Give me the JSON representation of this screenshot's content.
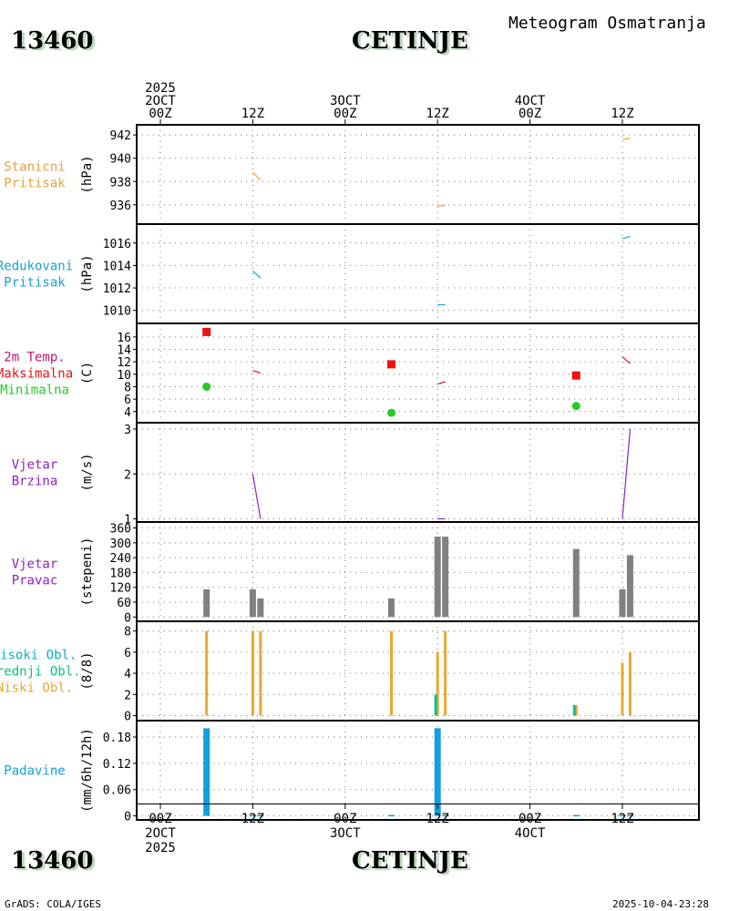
{
  "header": {
    "station_id": "13460",
    "station_name": "CETINJE",
    "chart_title": "Meteogram Osmatranja",
    "footer_left": "GrADS: COLA/IGES",
    "footer_right": "2025-10-04-23:28"
  },
  "colors": {
    "pressure_station": "#e8a040",
    "pressure_reduced": "#1aa0d0",
    "temp_label": "#c0186c",
    "temp_max": "#ee1111",
    "temp_min": "#22cc22",
    "wind": "#9020c0",
    "dir_bar": "#808080",
    "cloud_high": "#10b0c0",
    "cloud_mid": "#10c080",
    "cloud_low": "#e8a830",
    "precip": "#10a0e0"
  },
  "time_axis": {
    "hours": [
      0,
      12,
      24,
      36,
      48,
      60
    ],
    "top_labels": [
      {
        "lines": [
          "2025",
          "2OCT",
          "00Z"
        ]
      },
      {
        "lines": [
          "12Z"
        ]
      },
      {
        "lines": [
          "3OCT",
          "00Z"
        ]
      },
      {
        "lines": [
          "12Z"
        ]
      },
      {
        "lines": [
          "4OCT",
          "00Z"
        ]
      },
      {
        "lines": [
          "12Z"
        ]
      }
    ],
    "bottom_labels": [
      {
        "lines": [
          "00Z",
          "2OCT",
          "2025"
        ]
      },
      {
        "lines": [
          "12Z"
        ]
      },
      {
        "lines": [
          "00Z",
          "3OCT"
        ]
      },
      {
        "lines": [
          "12Z"
        ]
      },
      {
        "lines": [
          "00Z",
          "4OCT"
        ]
      },
      {
        "lines": [
          "12Z"
        ]
      }
    ]
  },
  "chart_data": [
    {
      "type": "line",
      "name": "station-pressure",
      "label_lines": [
        "Stanicni",
        "Pritisak"
      ],
      "label_color": "#e8a040",
      "ylabel": "(hPa)",
      "ylim": [
        934.5,
        942.4
      ],
      "yticks": [
        936,
        938,
        940,
        942
      ],
      "series": [
        {
          "name": "Stanicni Pritisak",
          "color": "#e8a040",
          "segments": [
            [
              [
                12,
                938.8
              ],
              [
                13,
                938.1
              ]
            ],
            [
              [
                36,
                935.9
              ],
              [
                37,
                935.95
              ]
            ],
            [
              [
                60,
                941.6
              ],
              [
                61,
                941.7
              ]
            ]
          ]
        }
      ]
    },
    {
      "type": "line",
      "name": "reduced-pressure",
      "label_lines": [
        "Redukovani",
        "Pritisak"
      ],
      "label_color": "#1aa0d0",
      "ylabel": "(hPa)",
      "ylim": [
        1009,
        1017.2
      ],
      "yticks": [
        1010,
        1012,
        1014,
        1016
      ],
      "series": [
        {
          "name": "Redukovani Pritisak",
          "color": "#1aa0d0",
          "segments": [
            [
              [
                12,
                1013.5
              ],
              [
                13,
                1012.9
              ]
            ],
            [
              [
                36,
                1010.5
              ],
              [
                37,
                1010.5
              ]
            ],
            [
              [
                60,
                1016.4
              ],
              [
                61,
                1016.6
              ]
            ]
          ]
        }
      ]
    },
    {
      "type": "line",
      "name": "temperature",
      "label_lines": [
        "2m Temp.",
        "Maksimalna",
        "Minimalna"
      ],
      "label_colors": [
        "#c0186c",
        "#ee1111",
        "#22cc22"
      ],
      "ylabel": "(C)",
      "ylim": [
        2.5,
        17.3
      ],
      "yticks": [
        4,
        6,
        8,
        10,
        12,
        14,
        16
      ],
      "series": [
        {
          "name": "2m Temp.",
          "color": "#c0186c",
          "segments": [
            [
              [
                12,
                10.6
              ],
              [
                13,
                10.2
              ]
            ],
            [
              [
                36,
                8.4
              ],
              [
                37,
                8.8
              ]
            ],
            [
              [
                60,
                12.8
              ],
              [
                61,
                11.7
              ]
            ]
          ]
        }
      ],
      "max_points": [
        [
          6,
          16.8
        ],
        [
          30,
          11.6
        ],
        [
          54,
          9.8
        ]
      ],
      "min_points": [
        [
          6,
          8.0
        ],
        [
          30,
          3.8
        ],
        [
          54,
          4.9
        ]
      ]
    },
    {
      "type": "line",
      "name": "wind-speed",
      "label_lines": [
        "Vjetar",
        "Brzina"
      ],
      "label_color": "#9020c0",
      "ylabel": "(m/s)",
      "ylim": [
        0.97,
        3.02
      ],
      "yticks": [
        1,
        2,
        3
      ],
      "series": [
        {
          "name": "Vjetar Brzina",
          "color": "#9020c0",
          "segments": [
            [
              [
                12,
                2.0
              ],
              [
                13,
                1.0
              ]
            ],
            [
              [
                36,
                1.0
              ],
              [
                37,
                1.0
              ]
            ],
            [
              [
                60,
                1.0
              ],
              [
                61,
                3.0
              ]
            ]
          ]
        }
      ]
    },
    {
      "type": "bar",
      "name": "wind-direction",
      "label_lines": [
        "Vjetar",
        "Pravac"
      ],
      "label_color": "#9020c0",
      "ylabel": "(stepeni)",
      "ylim": [
        -10,
        362
      ],
      "yticks": [
        0,
        60,
        120,
        180,
        240,
        300,
        360
      ],
      "ytick_labels": [
        "0",
        "60",
        "120",
        "180",
        "240",
        "300",
        "360"
      ],
      "bars": [
        {
          "x": 6,
          "value": 112
        },
        {
          "x": 12,
          "value": 112
        },
        {
          "x": 13,
          "value": 75
        },
        {
          "x": 30,
          "value": 75
        },
        {
          "x": 36,
          "value": 325
        },
        {
          "x": 37,
          "value": 325
        },
        {
          "x": 54,
          "value": 275
        },
        {
          "x": 60,
          "value": 112
        },
        {
          "x": 61,
          "value": 250
        }
      ]
    },
    {
      "type": "bar",
      "name": "cloud-cover",
      "label_lines": [
        "Visoki Obl.",
        "Srednji Obl.",
        "Niski Obl."
      ],
      "label_colors": [
        "#10b0c0",
        "#10c080",
        "#e8a830"
      ],
      "ylabel": "(8/8)",
      "ylim": [
        -0.3,
        8.4
      ],
      "yticks": [
        0,
        2,
        4,
        6,
        8
      ],
      "series": [
        {
          "name": "Niski Obl.",
          "color": "#e8a830",
          "points": [
            [
              6,
              8
            ],
            [
              12,
              8
            ],
            [
              13,
              8
            ],
            [
              30,
              8
            ],
            [
              36,
              6
            ],
            [
              37,
              8
            ],
            [
              54,
              1
            ],
            [
              60,
              5
            ],
            [
              61,
              6
            ]
          ]
        },
        {
          "name": "Srednji Obl.",
          "color": "#10c080",
          "points": [
            [
              36,
              2
            ],
            [
              54,
              1
            ]
          ]
        }
      ]
    },
    {
      "type": "bar",
      "name": "precipitation",
      "label_lines": [
        "Padavine"
      ],
      "label_color": "#10a0e0",
      "ylabel": "(mm/6h/12h)",
      "ylim": [
        -0.005,
        0.205
      ],
      "yticks": [
        0,
        0.06,
        0.12,
        0.18
      ],
      "ytick_labels": [
        "0",
        "0.06",
        "0.12",
        "0.18"
      ],
      "bars": [
        {
          "x": 6,
          "value": 0.2
        },
        {
          "x": 12,
          "value": 0.0
        },
        {
          "x": 13,
          "value": 0.0
        },
        {
          "x": 30,
          "value": 0.0
        },
        {
          "x": 36,
          "value": 0.2
        },
        {
          "x": 37,
          "value": 0.0
        },
        {
          "x": 54,
          "value": 0.0
        },
        {
          "x": 60,
          "value": 0.0
        },
        {
          "x": 61,
          "value": 0.0
        }
      ]
    }
  ]
}
